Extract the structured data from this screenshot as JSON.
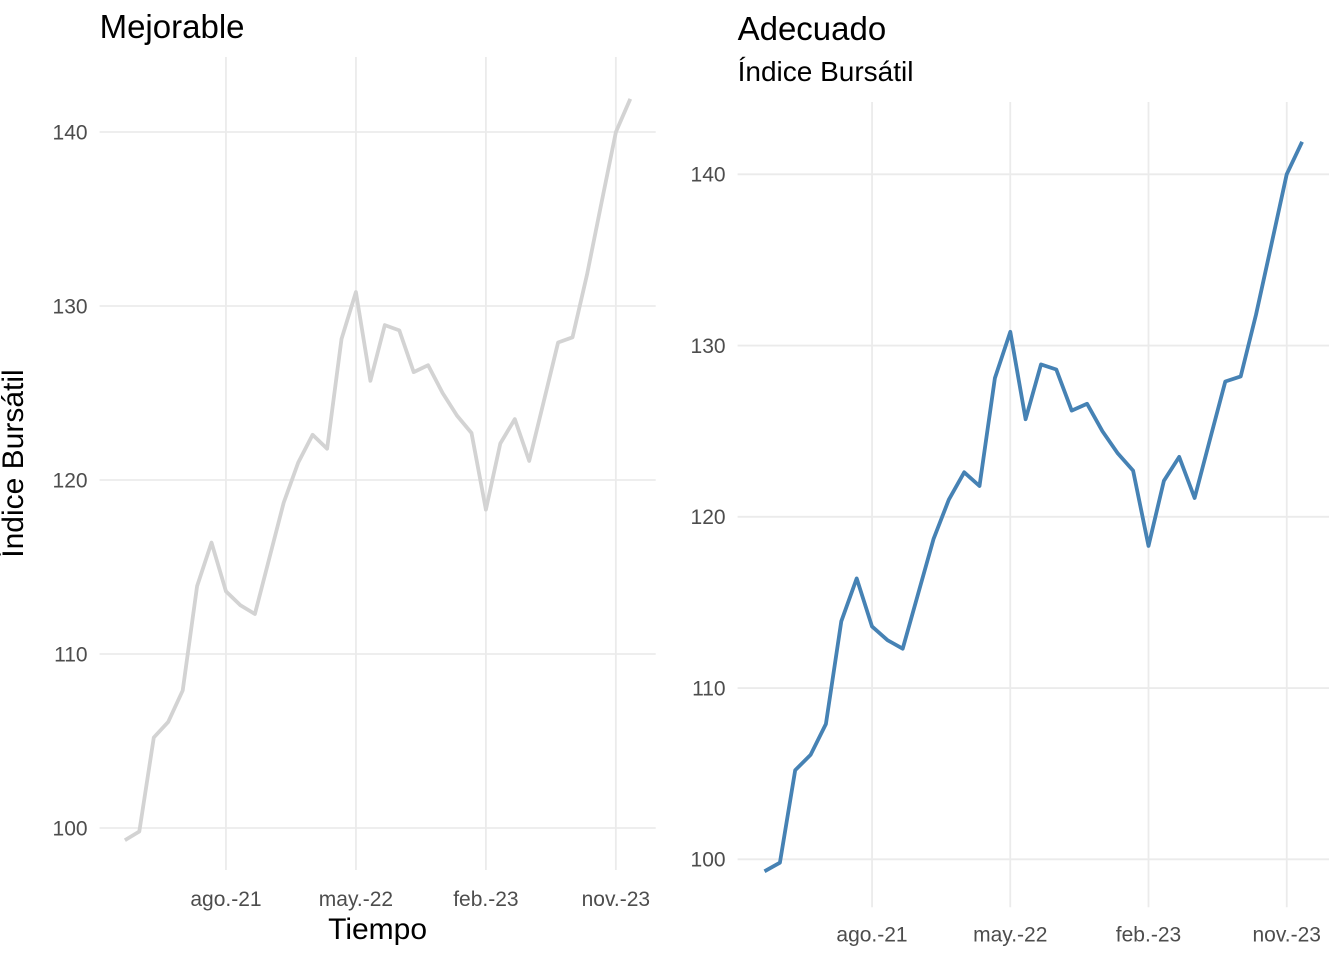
{
  "style": {
    "background_color": "#ffffff",
    "grid_color": "#ebebeb",
    "tick_label_color": "#4d4d4d",
    "title_color": "#000000"
  },
  "chart_data": [
    {
      "type": "line",
      "title": "Mejorable",
      "subtitle": "",
      "xlabel": "Tiempo",
      "ylabel": "Índice Bursátil",
      "grid": true,
      "legend_position": "none",
      "ylim": [
        97.5,
        144.3
      ],
      "y_ticks": [
        100,
        110,
        120,
        130,
        140
      ],
      "y_tick_labels": [
        "100",
        "110",
        "120",
        "130",
        "140"
      ],
      "x_tick_months": [
        7,
        16,
        25,
        34
      ],
      "x_tick_labels": [
        "ago.-21",
        "may.-22",
        "feb.-23",
        "nov.-23"
      ],
      "x": [
        "ene.-21",
        "feb.-21",
        "mar.-21",
        "abr.-21",
        "may.-21",
        "jun.-21",
        "jul.-21",
        "ago.-21",
        "sep.-21",
        "oct.-21",
        "nov.-21",
        "dic.-21",
        "ene.-22",
        "feb.-22",
        "mar.-22",
        "abr.-22",
        "may.-22",
        "jun.-22",
        "jul.-22",
        "ago.-22",
        "sep.-22",
        "oct.-22",
        "nov.-22",
        "dic.-22",
        "ene.-23",
        "feb.-23",
        "mar.-23",
        "abr.-23",
        "may.-23",
        "jun.-23",
        "jul.-23",
        "ago.-23",
        "sep.-23",
        "oct.-23",
        "nov.-23",
        "dic.-23"
      ],
      "series": [
        {
          "name": "Índice Bursátil",
          "color": "#d3d3d3",
          "values": [
            99.3,
            99.8,
            105.2,
            106.1,
            107.9,
            113.9,
            116.4,
            113.6,
            112.8,
            112.3,
            115.5,
            118.7,
            121.0,
            122.6,
            121.8,
            128.1,
            130.8,
            125.7,
            128.9,
            128.6,
            126.2,
            126.6,
            125.0,
            123.7,
            122.7,
            118.3,
            122.1,
            123.5,
            121.1,
            124.5,
            127.9,
            128.2,
            131.8,
            135.9,
            140.0,
            141.9
          ]
        }
      ]
    },
    {
      "type": "line",
      "title": "Adecuado",
      "subtitle": "Índice Bursátil",
      "xlabel": "",
      "ylabel": "",
      "grid": true,
      "legend_position": "none",
      "ylim": [
        97.2,
        144.3
      ],
      "y_ticks": [
        100,
        110,
        120,
        130,
        140
      ],
      "y_tick_labels": [
        "100",
        "110",
        "120",
        "130",
        "140"
      ],
      "x_tick_months": [
        7,
        16,
        25,
        34
      ],
      "x_tick_labels": [
        "ago.-21",
        "may.-22",
        "feb.-23",
        "nov.-23"
      ],
      "x": [
        "ene.-21",
        "feb.-21",
        "mar.-21",
        "abr.-21",
        "may.-21",
        "jun.-21",
        "jul.-21",
        "ago.-21",
        "sep.-21",
        "oct.-21",
        "nov.-21",
        "dic.-21",
        "ene.-22",
        "feb.-22",
        "mar.-22",
        "abr.-22",
        "may.-22",
        "jun.-22",
        "jul.-22",
        "ago.-22",
        "sep.-22",
        "oct.-22",
        "nov.-22",
        "dic.-22",
        "ene.-23",
        "feb.-23",
        "mar.-23",
        "abr.-23",
        "may.-23",
        "jun.-23",
        "jul.-23",
        "ago.-23",
        "sep.-23",
        "oct.-23",
        "nov.-23",
        "dic.-23"
      ],
      "series": [
        {
          "name": "Índice Bursátil",
          "color": "#4682b4",
          "values": [
            99.3,
            99.8,
            105.2,
            106.1,
            107.9,
            113.9,
            116.4,
            113.6,
            112.8,
            112.3,
            115.5,
            118.7,
            121.0,
            122.6,
            121.8,
            128.1,
            130.8,
            125.7,
            128.9,
            128.6,
            126.2,
            126.6,
            125.0,
            123.7,
            122.7,
            118.3,
            122.1,
            123.5,
            121.1,
            124.5,
            127.9,
            128.2,
            131.8,
            135.9,
            140.0,
            141.9
          ]
        }
      ]
    }
  ]
}
